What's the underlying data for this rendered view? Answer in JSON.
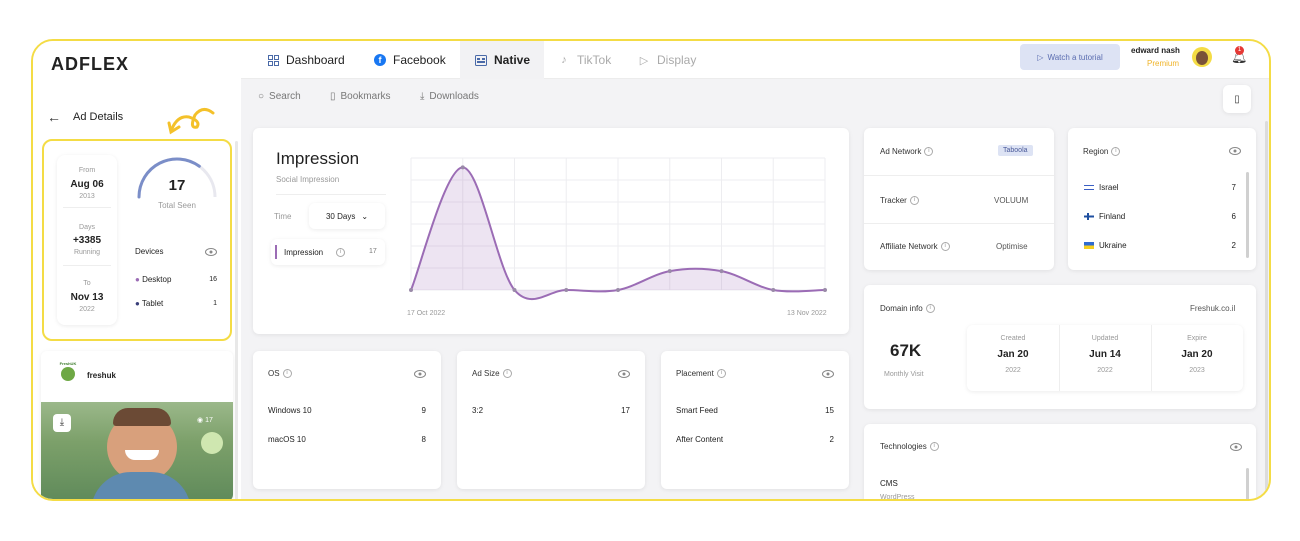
{
  "brand": {
    "logo": "ADFLEX",
    "accent": "#f4dc45",
    "primary": "#9b6cb5"
  },
  "left": {
    "back_label": "Ad Details",
    "from": {
      "label": "From",
      "date": "Aug 06",
      "year": "2013"
    },
    "days": {
      "label": "Days",
      "value": "+3385",
      "status": "Running"
    },
    "to": {
      "label": "To",
      "date": "Nov 13",
      "year": "2022"
    },
    "total_seen": {
      "value": "17",
      "label": "Total Seen",
      "gauge_fraction": 0.7
    },
    "devices": {
      "title": "Devices",
      "items": [
        {
          "name": "Desktop",
          "count": "16"
        },
        {
          "name": "Tablet",
          "count": "1"
        }
      ]
    },
    "advertiser": {
      "name": "freshuk",
      "logo_text": "FreshUK"
    },
    "preview": {
      "views": "17"
    }
  },
  "tabs": [
    {
      "label": "Dashboard",
      "icon": "grid-icon"
    },
    {
      "label": "Facebook",
      "icon": "facebook-icon"
    },
    {
      "label": "Native",
      "icon": "native-icon"
    },
    {
      "label": "TikTok",
      "icon": "tiktok-icon"
    },
    {
      "label": "Display",
      "icon": "display-icon"
    }
  ],
  "header": {
    "tutorial": "Watch a tutorial",
    "user": "edward nash",
    "plan": "Premium",
    "notifications": "1"
  },
  "subnav": {
    "search": "Search",
    "bookmarks": "Bookmarks",
    "downloads": "Downloads"
  },
  "impression": {
    "title": "Impression",
    "subtitle": "Social Impression",
    "time_label": "Time",
    "time_value": "30 Days",
    "legend_label": "Impression",
    "legend_value": "17",
    "x_start": "17 Oct 2022",
    "x_end": "13 Nov 2022"
  },
  "chart_data": {
    "type": "area",
    "title": "Impression",
    "x": [
      "17 Oct 2022",
      "",
      "",
      "",
      "",
      "",
      "",
      "",
      "13 Nov 2022"
    ],
    "series": [
      {
        "name": "Impression",
        "values": [
          0,
          13,
          0,
          0,
          0,
          2,
          2,
          0,
          0
        ]
      }
    ],
    "ylim": [
      0,
      14
    ],
    "grid": true
  },
  "network": {
    "ad_network_label": "Ad Network",
    "ad_network_value": "Taboola",
    "tracker_label": "Tracker",
    "tracker_value": "VOLUUM",
    "affiliate_label": "Affiliate Network",
    "affiliate_value": "Optimise"
  },
  "region": {
    "title": "Region",
    "items": [
      {
        "name": "Israel",
        "count": "7",
        "flag": "israel"
      },
      {
        "name": "Finland",
        "count": "6",
        "flag": "finland"
      },
      {
        "name": "Ukraine",
        "count": "2",
        "flag": "ukraine"
      }
    ]
  },
  "domain": {
    "title": "Domain info",
    "url": "Freshuk.co.il",
    "visits": "67K",
    "visits_label": "Monthly Visit",
    "created": {
      "label": "Created",
      "date": "Jan 20",
      "year": "2022"
    },
    "updated": {
      "label": "Updated",
      "date": "Jun 14",
      "year": "2022"
    },
    "expire": {
      "label": "Expire",
      "date": "Jan 20",
      "year": "2023"
    }
  },
  "os": {
    "title": "OS",
    "items": [
      {
        "name": "Windows 10",
        "count": "9"
      },
      {
        "name": "macOS 10",
        "count": "8"
      }
    ]
  },
  "adsize": {
    "title": "Ad Size",
    "items": [
      {
        "name": "3:2",
        "count": "17"
      }
    ]
  },
  "placement": {
    "title": "Placement",
    "items": [
      {
        "name": "Smart Feed",
        "count": "15"
      },
      {
        "name": "After Content",
        "count": "2"
      }
    ]
  },
  "technologies": {
    "title": "Technologies",
    "category": "CMS",
    "value": "WordPress"
  }
}
